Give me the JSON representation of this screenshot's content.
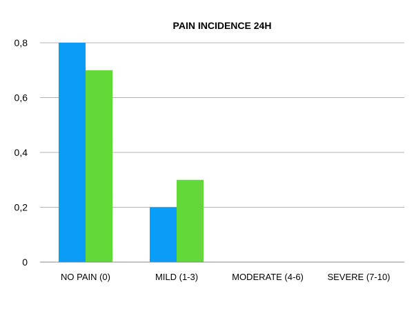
{
  "chart_data": {
    "type": "bar",
    "title": "PAIN INCIDENCE 24H",
    "xlabel": "",
    "ylabel": "",
    "categories": [
      "NO PAIN (0)",
      "MILD (1-3)",
      "MODERATE (4-6)",
      "SEVERE (7-10)"
    ],
    "series": [
      {
        "values": [
          0.8,
          0.2,
          0,
          0
        ],
        "color": "#0a9cf7"
      },
      {
        "values": [
          0.7,
          0.3,
          0,
          0
        ],
        "color": "#62d938"
      }
    ],
    "ylim": [
      0,
      0.8
    ],
    "yticks": [
      0,
      0.2,
      0.4,
      0.6,
      0.8
    ],
    "ytick_labels": [
      "0",
      "0,2",
      "0,4",
      "0,6",
      "0,8"
    ],
    "grid": true,
    "legend": "none"
  }
}
